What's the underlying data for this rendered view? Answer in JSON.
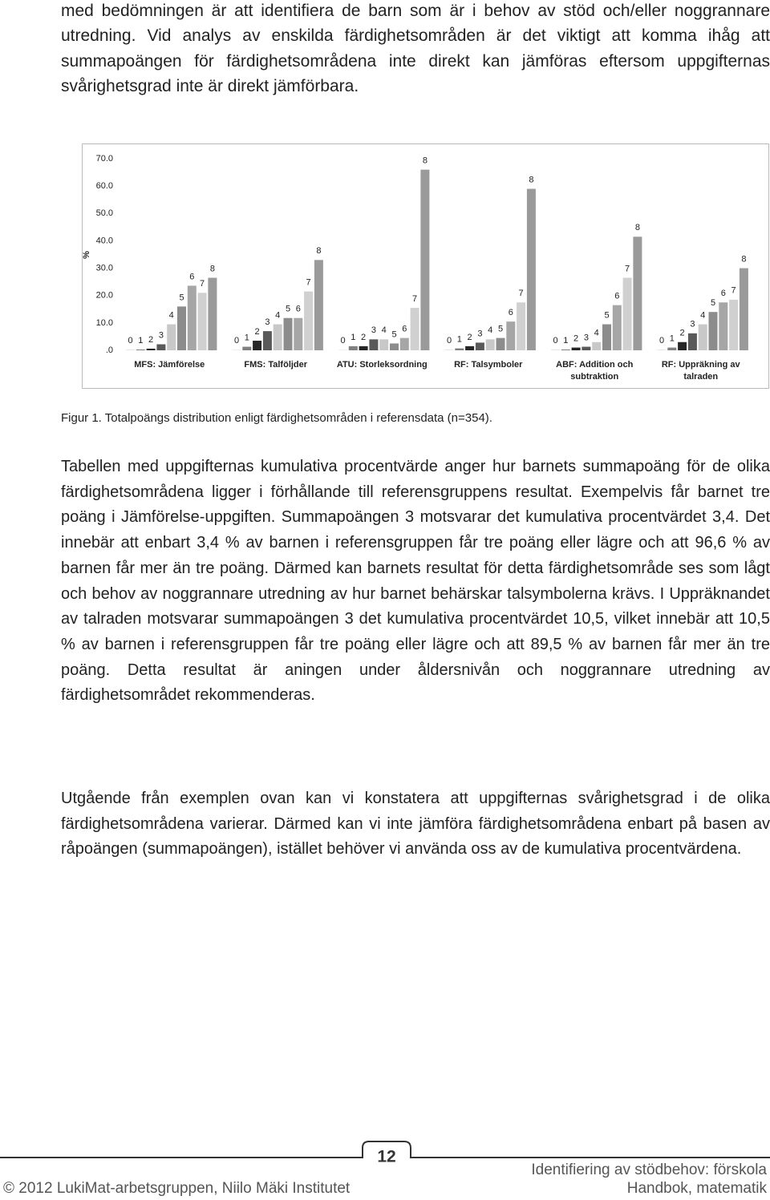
{
  "paragraphs": [
    "med bedömningen är att identifiera de barn som är i behov av stöd och/eller noggrannare utredning. Vid analys av enskilda färdighetsområden är det viktigt att komma ihåg att summapoängen för färdighetsområdena inte direkt kan jämföras eftersom uppgifternas svårighetsgrad inte är direkt jämförbara.",
    "Tabellen med uppgifternas kumulativa procentvärde anger hur barnets summapoäng för de olika färdighetsområdena ligger i förhållande till referensgruppens resultat. Exempelvis får barnet tre poäng i Jämförelse-uppgiften. Summapoängen 3 motsvarar det kumulativa procentvärdet 3,4. Det innebär att enbart 3,4 % av barnen i referensgruppen får tre poäng eller lägre och att 96,6 % av barnen får mer än tre poäng. Därmed kan barnets resultat för detta färdighetsområde ses som lågt och behov av noggrannare utredning av hur barnet behärskar talsymbolerna krävs. I Uppräknandet av talraden motsvarar summapoängen 3 det kumulativa procentvärdet 10,5, vilket innebär att 10,5 % av barnen i referensgruppen får tre poäng eller lägre och att 89,5 % av barnen får mer än tre poäng. Detta resultat är aningen under åldersnivån och noggrannare utredning av färdighetsområdet rekommenderas.",
    "Utgående från exemplen ovan kan vi konstatera att uppgifternas svårighetsgrad i de olika färdighetsområdena varierar. Därmed kan vi inte jämföra färdighetsområdena enbart på basen av råpoängen (summapoängen), istället behöver vi använda oss av de kumulativa procentvärdena."
  ],
  "chart_data": {
    "type": "bar",
    "y_label": "%",
    "categories": [
      "MFS: Jämförelse",
      "FMS: Talföljder",
      "ATU: Storleksordning",
      "RF: Talsymboler",
      "ABF: Addition och subtraktion",
      "RF: Uppräkning av talraden"
    ],
    "series": [
      {
        "name": "0",
        "color": "#e6e6e6",
        "values": [
          0.3,
          0.2,
          0.2,
          0.3,
          0.3,
          0.3
        ]
      },
      {
        "name": "1",
        "color": "#808080",
        "values": [
          0.3,
          1.3,
          1.5,
          0.7,
          0.3,
          1.0
        ]
      },
      {
        "name": "2",
        "color": "#262626",
        "values": [
          0.6,
          3.5,
          1.5,
          1.5,
          1.0,
          3.0
        ]
      },
      {
        "name": "3",
        "color": "#595959",
        "values": [
          2.2,
          7.0,
          4.0,
          2.8,
          1.3,
          6.2
        ]
      },
      {
        "name": "4",
        "color": "#c8c8c8",
        "values": [
          9.5,
          9.5,
          4.0,
          4.0,
          3.0,
          9.5
        ]
      },
      {
        "name": "5",
        "color": "#8c8c8c",
        "values": [
          16.0,
          11.8,
          2.5,
          4.5,
          9.5,
          14.0
        ]
      },
      {
        "name": "6",
        "color": "#a6a6a6",
        "values": [
          23.6,
          11.8,
          4.5,
          10.5,
          16.5,
          17.5
        ]
      },
      {
        "name": "7",
        "color": "#d0d0d0",
        "values": [
          21.0,
          21.5,
          15.5,
          17.5,
          26.5,
          18.5
        ]
      },
      {
        "name": "8",
        "color": "#9a9a9a",
        "values": [
          26.5,
          33.0,
          66.0,
          59.0,
          41.5,
          30.0
        ]
      }
    ],
    "ylim": [
      0,
      70
    ],
    "yticks": [
      {
        "value": 0,
        "label": ".0"
      },
      {
        "value": 10,
        "label": "10.0"
      },
      {
        "value": 20,
        "label": "20.0"
      },
      {
        "value": 30,
        "label": "30.0"
      },
      {
        "value": 40,
        "label": "40.0"
      },
      {
        "value": 50,
        "label": "50.0"
      },
      {
        "value": 60,
        "label": "60.0"
      },
      {
        "value": 70,
        "label": "70.0"
      }
    ],
    "grid": false
  },
  "caption": "Figur 1. Totalpoängs distribution enligt färdighetsområden i referensdata (n=354).",
  "footer": {
    "page_number": "12",
    "book_title": "Identifiering av stödbehov: förskola",
    "copyright": "© 2012 LukiMat-arbetsgruppen, Niilo Mäki Institutet",
    "book_subtitle": "Handbok, matematik"
  }
}
